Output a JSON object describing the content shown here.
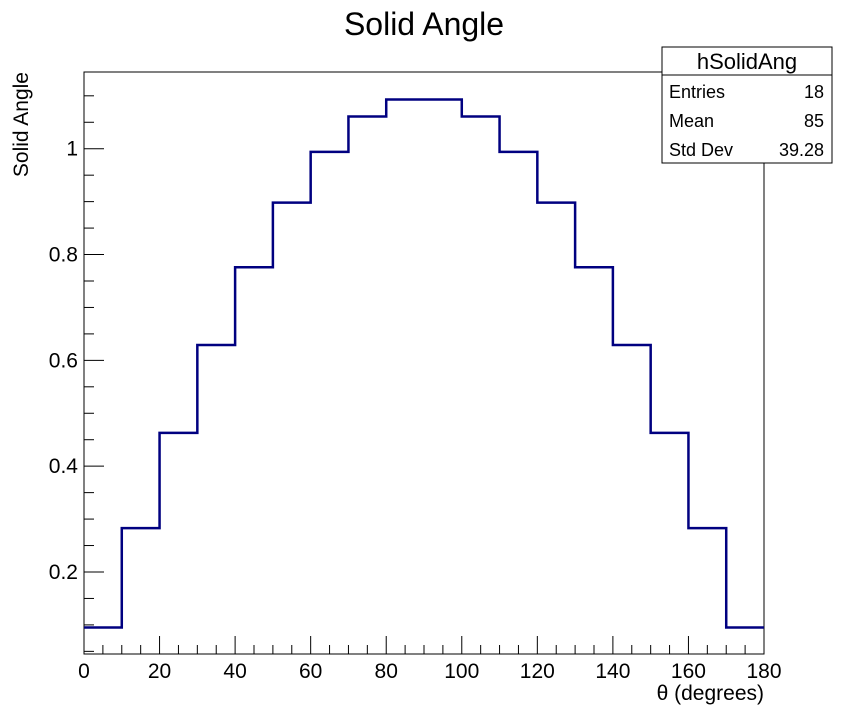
{
  "chart_data": {
    "type": "histogram",
    "title": "Solid Angle",
    "xlabel": "θ (degrees)",
    "ylabel": "Solid Angle",
    "xlim": [
      0,
      180
    ],
    "ylim": [
      0.045,
      1.145
    ],
    "x_ticks": [
      0,
      20,
      40,
      60,
      80,
      100,
      120,
      140,
      160,
      180
    ],
    "y_ticks": [
      0.2,
      0.4,
      0.6,
      0.8,
      1
    ],
    "bin_edges": [
      0,
      10,
      20,
      30,
      40,
      50,
      60,
      70,
      80,
      90,
      100,
      110,
      120,
      130,
      140,
      150,
      160,
      170,
      180
    ],
    "series": [
      {
        "values": [
          0.095,
          0.283,
          0.463,
          0.629,
          0.776,
          0.898,
          0.994,
          1.061,
          1.093,
          1.093,
          1.061,
          0.994,
          0.898,
          0.776,
          0.629,
          0.463,
          0.283,
          0.095
        ],
        "color": "#000080"
      }
    ],
    "stats_box": {
      "name": "hSolidAng",
      "rows": [
        {
          "label": "Entries",
          "value": "18"
        },
        {
          "label": "Mean",
          "value": "85"
        },
        {
          "label": "Std Dev",
          "value": "39.28"
        }
      ]
    },
    "grid": false
  }
}
